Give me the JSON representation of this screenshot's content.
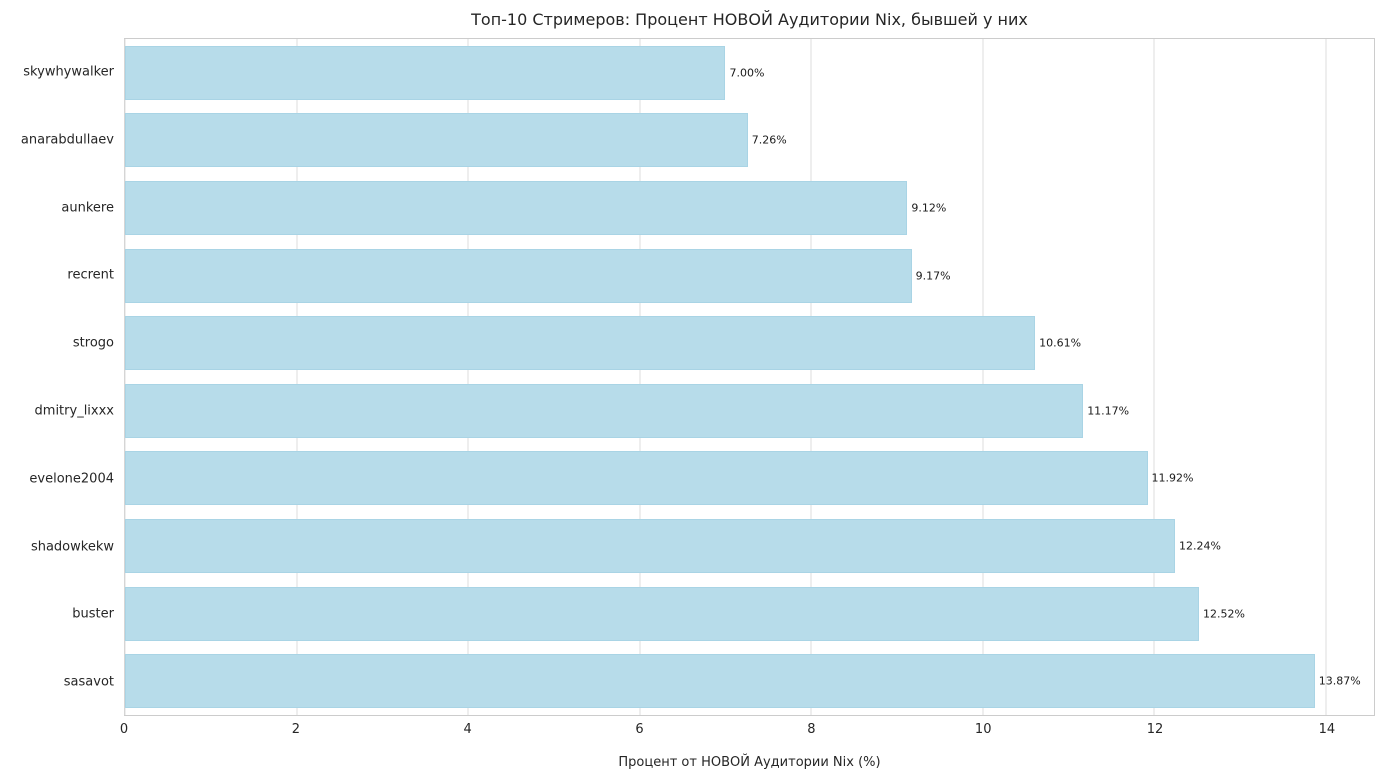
{
  "chart_data": {
    "type": "bar",
    "orientation": "horizontal",
    "title": "Топ-10 Стримеров: Процент НОВОЙ Аудитории Nix, бывшей у них",
    "xlabel": "Процент от НОВОЙ Аудитории Nix (%)",
    "ylabel": "",
    "categories": [
      "skywhywalker",
      "anarabdullaev",
      "aunkere",
      "recrent",
      "strogo",
      "dmitry_lixxx",
      "evelone2004",
      "shadowkekw",
      "buster",
      "sasavot"
    ],
    "values": [
      7.0,
      7.26,
      9.12,
      9.17,
      10.61,
      11.17,
      11.92,
      12.24,
      12.52,
      13.87
    ],
    "value_labels": [
      "7.00%",
      "7.26%",
      "9.12%",
      "9.17%",
      "10.61%",
      "11.17%",
      "11.92%",
      "12.24%",
      "12.52%",
      "13.87%"
    ],
    "xticks": [
      0,
      2,
      4,
      6,
      8,
      10,
      12,
      14
    ],
    "xlim": [
      0,
      14.56
    ],
    "grid": "vertical",
    "legend": "none",
    "bar_color": "#b7dcea",
    "bar_edge_color": "#a9d4e5"
  }
}
